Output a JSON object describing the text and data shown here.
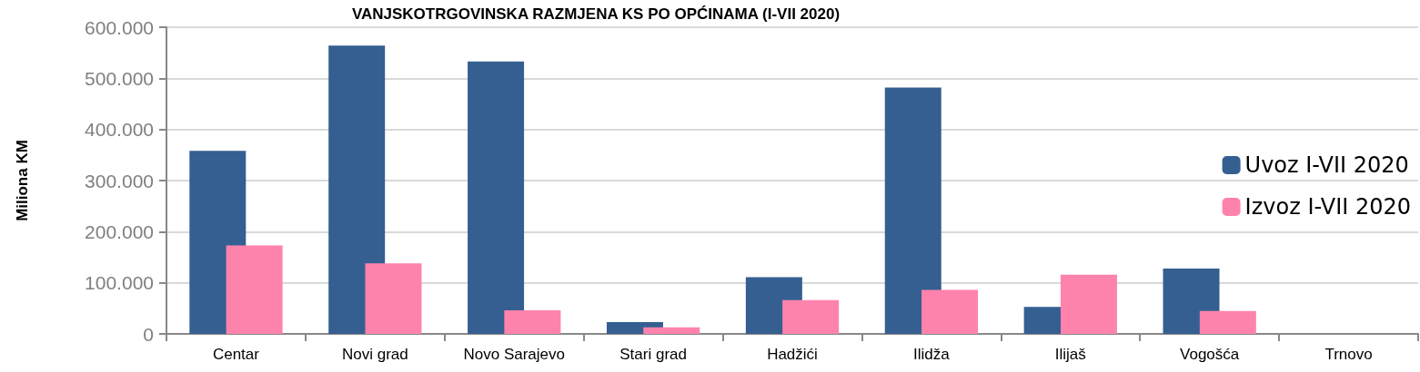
{
  "chart_data": {
    "type": "bar",
    "title": "VANJSKOTRGOVINSKA RAZMJENA KS PO OPĆINAMA (I-VII 2020)",
    "ylabel": "Miliona KM",
    "categories": [
      "Centar",
      "Novi grad",
      "Novo Sarajevo",
      "Stari grad",
      "Hadžići",
      "Ilidža",
      "Ilijaš",
      "Vogošća",
      "Trnovo"
    ],
    "series": [
      {
        "name": "Uvoz I-VII 2020",
        "color": "#355f91",
        "values": [
          358000,
          564000,
          533000,
          23000,
          111000,
          482000,
          53000,
          128000,
          0
        ]
      },
      {
        "name": "Izvoz I-VII 2020",
        "color": "#fe83ac",
        "values": [
          173000,
          138000,
          46000,
          13000,
          66000,
          86000,
          116000,
          45000,
          0
        ]
      }
    ],
    "ylim": [
      0,
      600000
    ],
    "yticks": [
      {
        "value": 0,
        "label": "0"
      },
      {
        "value": 100000,
        "label": "100.000"
      },
      {
        "value": 200000,
        "label": "200.000"
      },
      {
        "value": 300000,
        "label": "300.000"
      },
      {
        "value": 400000,
        "label": "400.000"
      },
      {
        "value": 500000,
        "label": "500.000"
      },
      {
        "value": 600000,
        "label": "600.000"
      }
    ],
    "grid": "y",
    "legend": "right"
  }
}
